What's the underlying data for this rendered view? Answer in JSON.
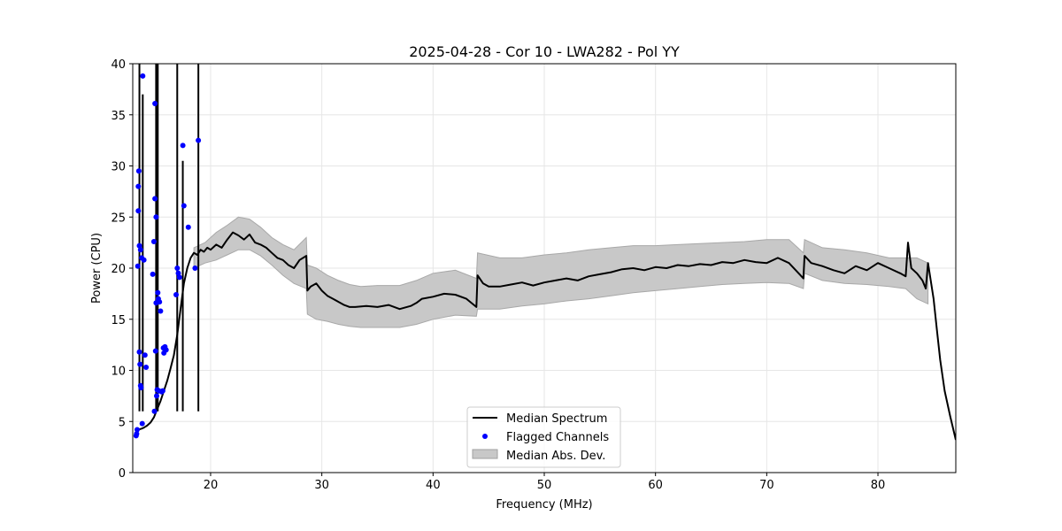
{
  "chart_data": {
    "type": "line",
    "title": "2025-04-28 - Cor 10 - LWA282 - Pol YY",
    "xlabel": "Frequency (MHz)",
    "ylabel": "Power (CPU)",
    "xlim": [
      13,
      87
    ],
    "ylim": [
      0,
      40
    ],
    "xticks": [
      20,
      30,
      40,
      50,
      60,
      70,
      80
    ],
    "yticks": [
      0,
      5,
      10,
      15,
      20,
      25,
      30,
      35,
      40
    ],
    "grid": true,
    "legend_position": "lower center",
    "legend": [
      {
        "label": "Median Spectrum",
        "kind": "line",
        "color": "#000000"
      },
      {
        "label": "Flagged Channels",
        "kind": "marker",
        "color": "#0000ff"
      },
      {
        "label": "Median Abs. Dev.",
        "kind": "patch",
        "color": "#c8c8c8"
      }
    ],
    "series": [
      {
        "name": "Median Spectrum",
        "color": "#000000",
        "x": [
          13.3,
          13.5,
          13.8,
          14.0,
          14.3,
          14.6,
          14.9,
          15.2,
          15.5,
          15.8,
          16.1,
          16.4,
          16.7,
          17.0,
          17.3,
          17.6,
          17.9,
          18.2,
          18.5,
          18.8,
          19.1,
          19.4,
          19.7,
          20.0,
          20.5,
          21.0,
          21.5,
          22.0,
          22.5,
          23.0,
          23.5,
          24.0,
          24.5,
          25.0,
          25.5,
          26.0,
          26.5,
          27.0,
          27.5,
          28.0,
          28.6,
          28.7,
          29.0,
          29.5,
          30.0,
          30.5,
          31.0,
          31.5,
          32.0,
          32.5,
          33.0,
          34.0,
          35.0,
          36.0,
          37.0,
          38.0,
          38.5,
          39.0,
          40.0,
          41.0,
          42.0,
          43.0,
          43.9,
          44.0,
          44.5,
          45.0,
          46.0,
          47.0,
          48.0,
          49.0,
          50.0,
          51.0,
          52.0,
          53.0,
          54.0,
          55.0,
          56.0,
          57.0,
          58.0,
          59.0,
          60.0,
          61.0,
          62.0,
          63.0,
          64.0,
          65.0,
          66.0,
          67.0,
          68.0,
          69.0,
          70.0,
          71.0,
          72.0,
          73.3,
          73.4,
          74.0,
          75.0,
          76.0,
          77.0,
          78.0,
          79.0,
          80.0,
          81.0,
          82.0,
          82.5,
          82.7,
          83.0,
          83.5,
          84.0,
          84.3,
          84.5,
          85.0,
          85.3,
          85.6,
          86.0,
          86.5,
          87.0
        ],
        "y": [
          4.0,
          4.2,
          4.3,
          4.4,
          4.6,
          4.9,
          5.4,
          6.2,
          7.0,
          8.0,
          9.0,
          10.2,
          11.5,
          13.5,
          16.0,
          18.5,
          20.0,
          21.0,
          21.5,
          21.3,
          21.8,
          21.6,
          22.0,
          21.8,
          22.3,
          22.0,
          22.8,
          23.5,
          23.2,
          22.8,
          23.3,
          22.5,
          22.3,
          22.0,
          21.5,
          21.0,
          20.8,
          20.3,
          20.0,
          20.8,
          21.2,
          17.8,
          18.2,
          18.5,
          17.8,
          17.3,
          17.0,
          16.7,
          16.4,
          16.2,
          16.2,
          16.3,
          16.2,
          16.4,
          16.0,
          16.3,
          16.6,
          17.0,
          17.2,
          17.5,
          17.4,
          17.0,
          16.2,
          19.3,
          18.5,
          18.2,
          18.2,
          18.4,
          18.6,
          18.3,
          18.6,
          18.8,
          19.0,
          18.8,
          19.2,
          19.4,
          19.6,
          19.9,
          20.0,
          19.8,
          20.1,
          20.0,
          20.3,
          20.2,
          20.4,
          20.3,
          20.6,
          20.5,
          20.8,
          20.6,
          20.5,
          21.0,
          20.5,
          19.0,
          21.2,
          20.5,
          20.2,
          19.8,
          19.5,
          20.2,
          19.8,
          20.5,
          20.0,
          19.5,
          19.2,
          22.5,
          20.0,
          19.5,
          18.8,
          18.0,
          20.5,
          17.0,
          14.0,
          11.0,
          8.0,
          5.5,
          3.2
        ]
      }
    ],
    "mad_band": {
      "name": "Median Abs. Dev.",
      "color": "#c8c8c8",
      "x": [
        18.5,
        19.5,
        20.5,
        21.5,
        22.5,
        23.5,
        24.5,
        25.5,
        26.5,
        27.5,
        28.6,
        28.7,
        29.5,
        30.5,
        31.5,
        32.5,
        33.5,
        35.0,
        37.0,
        38.5,
        40.0,
        42.0,
        43.9,
        44.0,
        46.0,
        48.0,
        50.0,
        52.0,
        54.0,
        56.0,
        58.0,
        60.0,
        62.0,
        64.0,
        66.0,
        68.0,
        70.0,
        72.0,
        73.3,
        73.4,
        75.0,
        77.0,
        79.0,
        81.0,
        82.5,
        83.5,
        84.5
      ],
      "lower": [
        20.0,
        20.5,
        20.8,
        21.3,
        21.8,
        21.8,
        21.2,
        20.3,
        19.3,
        18.5,
        18.0,
        15.5,
        15.0,
        14.8,
        14.5,
        14.3,
        14.2,
        14.2,
        14.2,
        14.5,
        15.0,
        15.4,
        15.3,
        16.0,
        16.0,
        16.3,
        16.5,
        16.8,
        17.0,
        17.3,
        17.6,
        17.8,
        18.0,
        18.2,
        18.4,
        18.5,
        18.6,
        18.5,
        18.0,
        19.5,
        18.8,
        18.5,
        18.4,
        18.2,
        18.0,
        17.0,
        16.5
      ],
      "upper": [
        22.0,
        22.5,
        23.5,
        24.2,
        25.0,
        24.8,
        24.0,
        23.0,
        22.3,
        21.8,
        23.0,
        20.3,
        20.0,
        19.3,
        18.8,
        18.4,
        18.2,
        18.3,
        18.3,
        18.8,
        19.5,
        19.8,
        19.0,
        21.5,
        21.0,
        21.0,
        21.3,
        21.5,
        21.8,
        22.0,
        22.2,
        22.2,
        22.3,
        22.4,
        22.5,
        22.6,
        22.8,
        22.8,
        21.5,
        22.8,
        22.0,
        21.8,
        21.5,
        21.0,
        21.0,
        21.0,
        20.5
      ]
    },
    "flagged": {
      "name": "Flagged Channels",
      "color": "#0000ff",
      "x": [
        13.3,
        13.35,
        13.4,
        13.45,
        13.5,
        13.5,
        13.55,
        13.6,
        13.6,
        13.65,
        13.7,
        13.7,
        13.75,
        13.8,
        13.85,
        13.9,
        14.0,
        14.1,
        14.2,
        14.8,
        14.9,
        14.95,
        15.0,
        15.0,
        15.05,
        15.1,
        15.1,
        15.15,
        15.2,
        15.25,
        15.3,
        15.35,
        15.4,
        15.5,
        15.6,
        15.7,
        15.75,
        15.8,
        15.9,
        16.0,
        16.9,
        17.0,
        17.1,
        17.2,
        17.5,
        17.6,
        18.0,
        18.6,
        18.9
      ],
      "y": [
        3.6,
        3.8,
        4.2,
        20.2,
        28.0,
        25.6,
        29.5,
        22.2,
        11.8,
        10.6,
        21.8,
        8.5,
        8.3,
        21.0,
        4.8,
        38.8,
        20.8,
        11.5,
        10.3,
        19.4,
        22.6,
        6.0,
        26.8,
        36.1,
        11.9,
        25.0,
        16.6,
        7.5,
        8.1,
        17.6,
        17.0,
        8.0,
        16.7,
        15.8,
        7.9,
        8.0,
        12.2,
        11.7,
        12.3,
        12.0,
        17.4,
        20.0,
        19.5,
        19.1,
        32.0,
        26.1,
        24.0,
        20.0,
        32.5
      ]
    }
  }
}
